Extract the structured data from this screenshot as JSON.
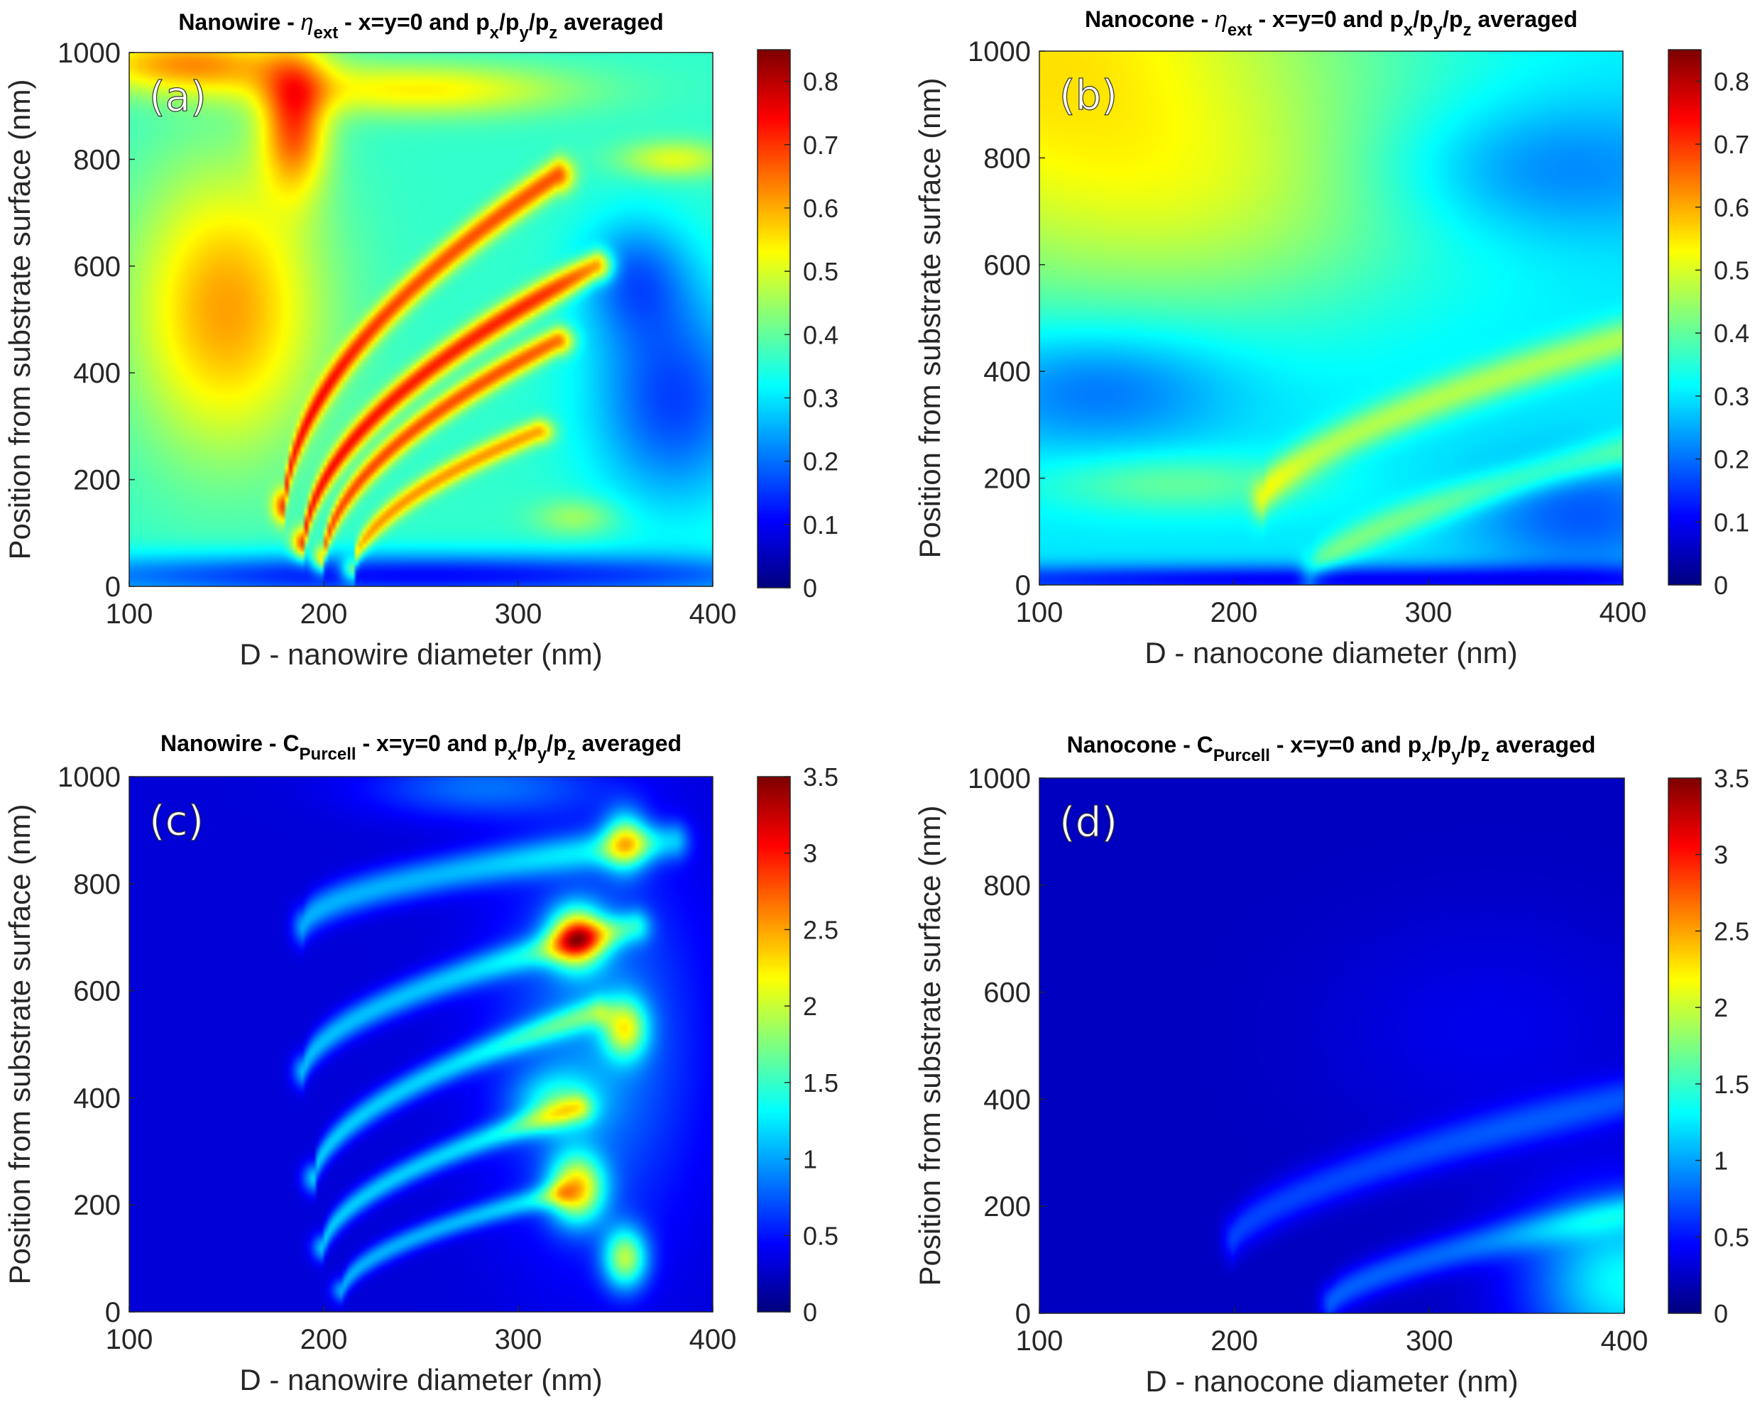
{
  "chart_data": [
    {
      "type": "heatmap",
      "panel_label": "(a)",
      "title": {
        "prefix": "Nanowire - ",
        "symbol": "η",
        "symbol_sub": "ext",
        "middle": " - x=y=0 and p",
        "sub_x": "x",
        "sep1": "/p",
        "sub_y": "y",
        "sep2": "/p",
        "sub_z": "z",
        "suffix": " averaged"
      },
      "xlabel": "D - nanowire diameter (nm)",
      "ylabel": "Position from substrate surface (nm)",
      "xlim": [
        100,
        400
      ],
      "ylim": [
        0,
        1000
      ],
      "xticks": [
        "100",
        "200",
        "300",
        "400"
      ],
      "yticks": [
        "0",
        "200",
        "400",
        "600",
        "800",
        "1000"
      ],
      "colorbar": {
        "min": 0,
        "max": 0.85,
        "ticks": [
          "0",
          "0.1",
          "0.2",
          "0.3",
          "0.4",
          "0.5",
          "0.6",
          "0.7",
          "0.8"
        ]
      },
      "base": 0.36,
      "features": [
        {
          "kind": "blob",
          "d": 150,
          "y": 520,
          "sd": 35,
          "sy": 190,
          "amp": 0.25
        },
        {
          "kind": "blob",
          "d": 185,
          "y": 870,
          "sd": 12,
          "sy": 90,
          "amp": 0.3
        },
        {
          "kind": "blob",
          "d": 250,
          "y": 930,
          "sd": 55,
          "sy": 35,
          "amp": 0.18
        },
        {
          "kind": "blob",
          "d": 130,
          "y": 980,
          "sd": 40,
          "sy": 40,
          "amp": 0.25
        },
        {
          "kind": "blob",
          "d": 380,
          "y": 800,
          "sd": 20,
          "sy": 25,
          "amp": 0.15
        },
        {
          "kind": "blob",
          "d": 380,
          "y": 350,
          "sd": 30,
          "sy": 140,
          "amp": -0.2
        },
        {
          "kind": "blob",
          "d": 360,
          "y": 580,
          "sd": 20,
          "sy": 80,
          "amp": -0.15
        },
        {
          "kind": "blob",
          "d": 250,
          "y": 20,
          "sd": 150,
          "sy": 30,
          "amp": -0.25
        },
        {
          "kind": "blob",
          "d": 330,
          "y": 130,
          "sd": 15,
          "sy": 25,
          "amp": 0.1
        },
        {
          "kind": "arc",
          "d0": 180,
          "d1": 320,
          "y0": 150,
          "y1": 770,
          "p": 0.55,
          "w": 22,
          "amp": 0.32
        },
        {
          "kind": "arc",
          "d0": 190,
          "d1": 340,
          "y0": 80,
          "y1": 600,
          "p": 0.55,
          "w": 20,
          "amp": 0.36
        },
        {
          "kind": "arc",
          "d0": 200,
          "d1": 320,
          "y0": 50,
          "y1": 460,
          "p": 0.55,
          "w": 18,
          "amp": 0.32
        },
        {
          "kind": "arc",
          "d0": 215,
          "d1": 310,
          "y0": 30,
          "y1": 290,
          "p": 0.55,
          "w": 16,
          "amp": 0.26
        }
      ]
    },
    {
      "type": "heatmap",
      "panel_label": "(b)",
      "title": {
        "prefix": "Nanocone - ",
        "symbol": "η",
        "symbol_sub": "ext",
        "middle": " - x=y=0 and p",
        "sub_x": "x",
        "sep1": "/p",
        "sub_y": "y",
        "sep2": "/p",
        "sub_z": "z",
        "suffix": " averaged"
      },
      "xlabel": "D - nanocone diameter (nm)",
      "ylabel": "Position from substrate surface (nm)",
      "xlim": [
        100,
        400
      ],
      "ylim": [
        0,
        1000
      ],
      "xticks": [
        "100",
        "200",
        "300",
        "400"
      ],
      "yticks": [
        "0",
        "200",
        "400",
        "600",
        "800",
        "1000"
      ],
      "colorbar": {
        "min": 0,
        "max": 0.85,
        "ticks": [
          "0",
          "0.1",
          "0.2",
          "0.3",
          "0.4",
          "0.5",
          "0.6",
          "0.7",
          "0.8"
        ]
      },
      "base": 0.3,
      "features": [
        {
          "kind": "blob",
          "d": 100,
          "y": 1000,
          "sd": 120,
          "sy": 300,
          "amp": 0.25
        },
        {
          "kind": "blob",
          "d": 200,
          "y": 700,
          "sd": 80,
          "sy": 150,
          "amp": 0.08
        },
        {
          "kind": "blob",
          "d": 130,
          "y": 370,
          "sd": 50,
          "sy": 80,
          "amp": -0.12
        },
        {
          "kind": "blob",
          "d": 360,
          "y": 780,
          "sd": 60,
          "sy": 90,
          "amp": -0.1
        },
        {
          "kind": "blob",
          "d": 250,
          "y": 10,
          "sd": 200,
          "sy": 20,
          "amp": -0.2
        },
        {
          "kind": "blob",
          "d": 380,
          "y": 130,
          "sd": 40,
          "sy": 80,
          "amp": -0.12
        },
        {
          "kind": "blob",
          "d": 170,
          "y": 190,
          "sd": 50,
          "sy": 40,
          "amp": 0.1
        },
        {
          "kind": "arc",
          "d0": 215,
          "d1": 400,
          "y0": 160,
          "y1": 460,
          "p": 0.65,
          "w": 28,
          "amp": 0.16
        },
        {
          "kind": "arc",
          "d0": 240,
          "d1": 400,
          "y0": 20,
          "y1": 250,
          "p": 0.65,
          "w": 24,
          "amp": 0.12
        }
      ]
    },
    {
      "type": "heatmap",
      "panel_label": "(c)",
      "title": {
        "prefix": "Nanowire - C",
        "symbol": "",
        "symbol_sub": "Purcell",
        "middle": " - x=y=0 and p",
        "sub_x": "x",
        "sep1": "/p",
        "sub_y": "y",
        "sep2": "/p",
        "sub_z": "z",
        "suffix": " averaged"
      },
      "xlabel": "D - nanowire diameter (nm)",
      "ylabel": "Position from substrate surface (nm)",
      "xlim": [
        100,
        400
      ],
      "ylim": [
        0,
        1000
      ],
      "xticks": [
        "100",
        "200",
        "300",
        "400"
      ],
      "yticks": [
        "0",
        "200",
        "400",
        "600",
        "800",
        "1000"
      ],
      "colorbar": {
        "min": 0,
        "max": 3.5,
        "ticks": [
          "0",
          "0.5",
          "1",
          "1.5",
          "2",
          "2.5",
          "3",
          "3.5"
        ]
      },
      "base": 0.3,
      "features": [
        {
          "kind": "blob",
          "d": 330,
          "y": 700,
          "sd": 10,
          "sy": 40,
          "amp": 2.0
        },
        {
          "kind": "blob",
          "d": 330,
          "y": 230,
          "sd": 10,
          "sy": 45,
          "amp": 1.8
        },
        {
          "kind": "blob",
          "d": 355,
          "y": 530,
          "sd": 8,
          "sy": 40,
          "amp": 1.4
        },
        {
          "kind": "blob",
          "d": 355,
          "y": 100,
          "sd": 8,
          "sy": 40,
          "amp": 1.5
        },
        {
          "kind": "blob",
          "d": 355,
          "y": 880,
          "sd": 8,
          "sy": 40,
          "amp": 1.3
        },
        {
          "kind": "blob",
          "d": 320,
          "y": 390,
          "sd": 15,
          "sy": 40,
          "amp": 0.8
        },
        {
          "kind": "blob",
          "d": 340,
          "y": 500,
          "sd": 35,
          "sy": 250,
          "amp": 0.6
        },
        {
          "kind": "blob",
          "d": 280,
          "y": 980,
          "sd": 40,
          "sy": 40,
          "amp": 0.5
        },
        {
          "kind": "arc",
          "d0": 190,
          "d1": 380,
          "y0": 720,
          "y1": 880,
          "p": 0.5,
          "w": 25,
          "amp": 0.75
        },
        {
          "kind": "arc",
          "d0": 190,
          "d1": 360,
          "y0": 450,
          "y1": 720,
          "p": 0.55,
          "w": 22,
          "amp": 0.8
        },
        {
          "kind": "arc",
          "d0": 195,
          "d1": 340,
          "y0": 250,
          "y1": 560,
          "p": 0.55,
          "w": 20,
          "amp": 0.85
        },
        {
          "kind": "arc",
          "d0": 200,
          "d1": 330,
          "y0": 120,
          "y1": 380,
          "p": 0.55,
          "w": 18,
          "amp": 0.85
        },
        {
          "kind": "arc",
          "d0": 210,
          "d1": 320,
          "y0": 40,
          "y1": 220,
          "p": 0.55,
          "w": 16,
          "amp": 0.75
        }
      ]
    },
    {
      "type": "heatmap",
      "panel_label": "(d)",
      "title": {
        "prefix": "Nanocone - C",
        "symbol": "",
        "symbol_sub": "Purcell",
        "middle": " - x=y=0 and p",
        "sub_x": "x",
        "sep1": "/p",
        "sub_y": "y",
        "sep2": "/p",
        "sub_z": "z",
        "suffix": " averaged"
      },
      "xlabel": "D - nanocone diameter (nm)",
      "ylabel": "Position from substrate surface (nm)",
      "xlim": [
        100,
        400
      ],
      "ylim": [
        0,
        1000
      ],
      "xticks": [
        "100",
        "200",
        "300",
        "400"
      ],
      "yticks": [
        "0",
        "200",
        "400",
        "600",
        "800",
        "1000"
      ],
      "colorbar": {
        "min": 0,
        "max": 3.5,
        "ticks": [
          "0",
          "0.5",
          "1",
          "1.5",
          "2",
          "2.5",
          "3",
          "3.5"
        ]
      },
      "base": 0.22,
      "features": [
        {
          "kind": "blob",
          "d": 330,
          "y": 530,
          "sd": 60,
          "sy": 150,
          "amp": 0.15
        },
        {
          "kind": "blob",
          "d": 400,
          "y": 60,
          "sd": 35,
          "sy": 110,
          "amp": 1.1
        },
        {
          "kind": "arc",
          "d0": 200,
          "d1": 400,
          "y0": 140,
          "y1": 400,
          "p": 0.65,
          "w": 30,
          "amp": 0.45
        },
        {
          "kind": "arc",
          "d0": 250,
          "d1": 400,
          "y0": 20,
          "y1": 190,
          "p": 0.65,
          "w": 25,
          "amp": 0.55
        }
      ]
    }
  ]
}
